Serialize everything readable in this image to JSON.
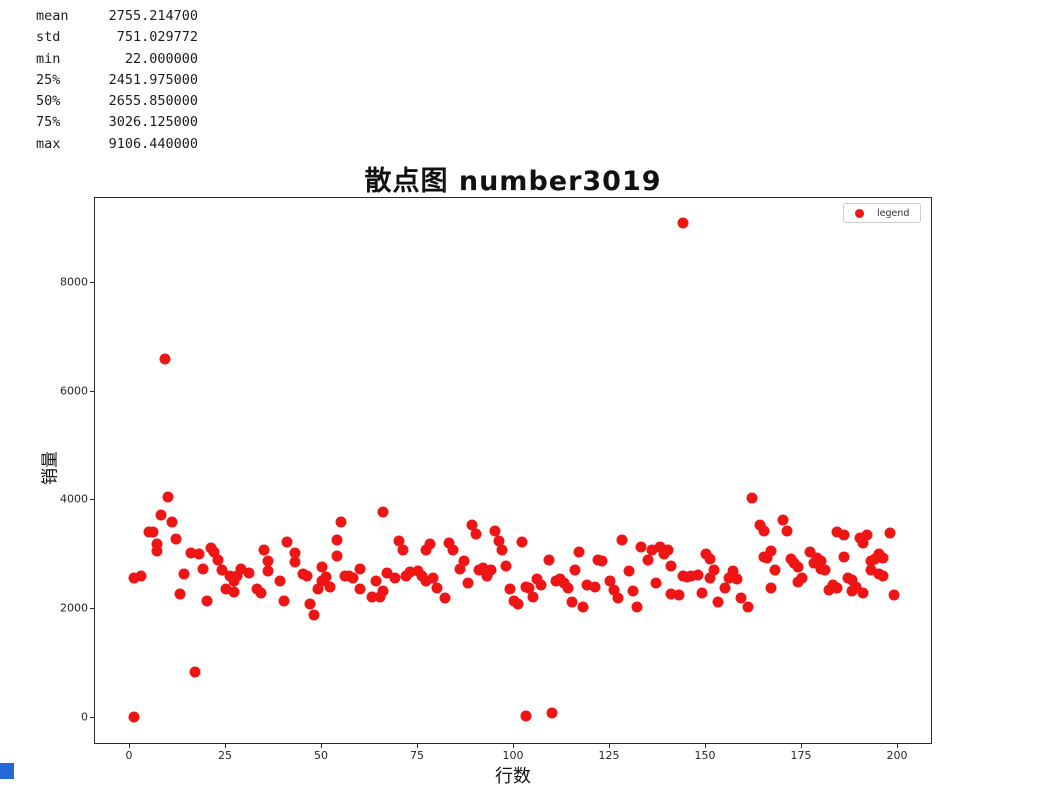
{
  "stats_panel": {
    "rows": [
      {
        "label": "mean",
        "value": "2755.214700"
      },
      {
        "label": "std",
        "value": "751.029772"
      },
      {
        "label": "min",
        "value": "22.000000"
      },
      {
        "label": "25%",
        "value": "2451.975000"
      },
      {
        "label": "50%",
        "value": "2655.850000"
      },
      {
        "label": "75%",
        "value": "3026.125000"
      },
      {
        "label": "max",
        "value": "9106.440000"
      }
    ]
  },
  "chart_data": {
    "type": "scatter",
    "title": "散点图 number3019",
    "xlabel": "行数",
    "ylabel": "销量",
    "legend": {
      "label": "legend",
      "position": "upper right"
    },
    "marker_color": "#f01515",
    "grid": false,
    "x_ticks": [
      0,
      25,
      50,
      75,
      100,
      125,
      150,
      175,
      200
    ],
    "y_ticks": [
      0,
      2000,
      4000,
      6000,
      8000
    ],
    "xlim": [
      -9.1,
      209.1
    ],
    "ylim": [
      -500,
      9560
    ],
    "points": [
      [
        1,
        22
      ],
      [
        1,
        2570
      ],
      [
        3,
        2600
      ],
      [
        5,
        3420
      ],
      [
        6,
        3410
      ],
      [
        7,
        3205
      ],
      [
        7,
        3060
      ],
      [
        8,
        3735
      ],
      [
        9,
        6600
      ],
      [
        10,
        4060
      ],
      [
        11,
        3600
      ],
      [
        12,
        3280
      ],
      [
        13,
        2275
      ],
      [
        14,
        2650
      ],
      [
        16,
        3035
      ],
      [
        17,
        850
      ],
      [
        18,
        3005
      ],
      [
        19,
        2735
      ],
      [
        20,
        2155
      ],
      [
        21,
        3130
      ],
      [
        22,
        3045
      ],
      [
        23,
        2910
      ],
      [
        24,
        2720
      ],
      [
        25,
        2375
      ],
      [
        26,
        2600
      ],
      [
        27,
        2525
      ],
      [
        27,
        2315
      ],
      [
        28,
        2600
      ],
      [
        29,
        2740
      ],
      [
        31,
        2660
      ],
      [
        33,
        2370
      ],
      [
        34,
        2290
      ],
      [
        35,
        3095
      ],
      [
        36,
        2890
      ],
      [
        36,
        2695
      ],
      [
        39,
        2525
      ],
      [
        40,
        2155
      ],
      [
        41,
        3230
      ],
      [
        43,
        3030
      ],
      [
        43,
        2860
      ],
      [
        45,
        2650
      ],
      [
        46,
        2600
      ],
      [
        47,
        2095
      ],
      [
        48,
        1900
      ],
      [
        49,
        2370
      ],
      [
        50,
        2525
      ],
      [
        50,
        2770
      ],
      [
        51,
        2585
      ],
      [
        52,
        2400
      ],
      [
        54,
        2985
      ],
      [
        54,
        3275
      ],
      [
        55,
        3600
      ],
      [
        56,
        2615
      ],
      [
        57,
        2600
      ],
      [
        58,
        2575
      ],
      [
        60,
        2740
      ],
      [
        60,
        2370
      ],
      [
        63,
        2230
      ],
      [
        64,
        2525
      ],
      [
        65,
        2230
      ],
      [
        66,
        3785
      ],
      [
        66,
        2330
      ],
      [
        67,
        2660
      ],
      [
        69,
        2575
      ],
      [
        70,
        3250
      ],
      [
        71,
        3080
      ],
      [
        72,
        2615
      ],
      [
        73,
        2680
      ],
      [
        75,
        2695
      ],
      [
        76,
        2600
      ],
      [
        77,
        3080
      ],
      [
        77,
        2525
      ],
      [
        78,
        3190
      ],
      [
        79,
        2575
      ],
      [
        80,
        2390
      ],
      [
        82,
        2205
      ],
      [
        83,
        3215
      ],
      [
        84,
        3085
      ],
      [
        86,
        2740
      ],
      [
        87,
        2880
      ],
      [
        88,
        2475
      ],
      [
        89,
        3555
      ],
      [
        90,
        3375
      ],
      [
        91,
        2720
      ],
      [
        92,
        2760
      ],
      [
        93,
        2615
      ],
      [
        94,
        2710
      ],
      [
        95,
        3435
      ],
      [
        96,
        3250
      ],
      [
        97,
        3080
      ],
      [
        98,
        2800
      ],
      [
        99,
        2370
      ],
      [
        100,
        2145
      ],
      [
        101,
        2095
      ],
      [
        102,
        3230
      ],
      [
        103,
        30
      ],
      [
        103,
        2415
      ],
      [
        104,
        2390
      ],
      [
        105,
        2230
      ],
      [
        106,
        2555
      ],
      [
        107,
        2450
      ],
      [
        109,
        2895
      ],
      [
        110,
        80
      ],
      [
        111,
        2525
      ],
      [
        112,
        2555
      ],
      [
        113,
        2475
      ],
      [
        114,
        2390
      ],
      [
        115,
        2125
      ],
      [
        116,
        2720
      ],
      [
        117,
        3045
      ],
      [
        118,
        2045
      ],
      [
        119,
        2435
      ],
      [
        121,
        2415
      ],
      [
        122,
        2905
      ],
      [
        123,
        2880
      ],
      [
        125,
        2525
      ],
      [
        126,
        2355
      ],
      [
        127,
        2205
      ],
      [
        128,
        3275
      ],
      [
        130,
        2695
      ],
      [
        131,
        2330
      ],
      [
        132,
        2045
      ],
      [
        133,
        3150
      ],
      [
        135,
        2905
      ],
      [
        136,
        3080
      ],
      [
        137,
        2480
      ],
      [
        138,
        3150
      ],
      [
        139,
        3015
      ],
      [
        140,
        3090
      ],
      [
        141,
        2800
      ],
      [
        141,
        2280
      ],
      [
        143,
        2265
      ],
      [
        144,
        9106
      ],
      [
        144,
        2600
      ],
      [
        145,
        2585
      ],
      [
        146,
        2615
      ],
      [
        148,
        2635
      ],
      [
        149,
        2290
      ],
      [
        150,
        3005
      ],
      [
        151,
        2925
      ],
      [
        151,
        2575
      ],
      [
        152,
        2720
      ],
      [
        153,
        2125
      ],
      [
        155,
        2390
      ],
      [
        156,
        2575
      ],
      [
        157,
        2695
      ],
      [
        158,
        2555
      ],
      [
        159,
        2205
      ],
      [
        161,
        2045
      ],
      [
        162,
        4050
      ],
      [
        164,
        3555
      ],
      [
        165,
        3435
      ],
      [
        165,
        2965
      ],
      [
        166,
        2945
      ],
      [
        167,
        3065
      ],
      [
        167,
        2390
      ],
      [
        168,
        2720
      ],
      [
        170,
        3645
      ],
      [
        171,
        3435
      ],
      [
        172,
        2925
      ],
      [
        173,
        2845
      ],
      [
        174,
        2770
      ],
      [
        174,
        2495
      ],
      [
        175,
        2575
      ],
      [
        177,
        3045
      ],
      [
        178,
        2845
      ],
      [
        179,
        2945
      ],
      [
        180,
        2880
      ],
      [
        180,
        2740
      ],
      [
        181,
        2720
      ],
      [
        182,
        2355
      ],
      [
        183,
        2435
      ],
      [
        184,
        3415
      ],
      [
        184,
        2390
      ],
      [
        186,
        3355
      ],
      [
        186,
        2965
      ],
      [
        187,
        2575
      ],
      [
        188,
        2540
      ],
      [
        188,
        2330
      ],
      [
        189,
        2415
      ],
      [
        190,
        3310
      ],
      [
        191,
        3215
      ],
      [
        191,
        2290
      ],
      [
        192,
        3355
      ],
      [
        193,
        2880
      ],
      [
        193,
        2720
      ],
      [
        194,
        2925
      ],
      [
        195,
        3005
      ],
      [
        195,
        2650
      ],
      [
        196,
        2945
      ],
      [
        196,
        2615
      ],
      [
        198,
        3400
      ],
      [
        199,
        2250
      ]
    ]
  },
  "artifacts": {
    "corner_fragment_color": "#2569d8"
  }
}
